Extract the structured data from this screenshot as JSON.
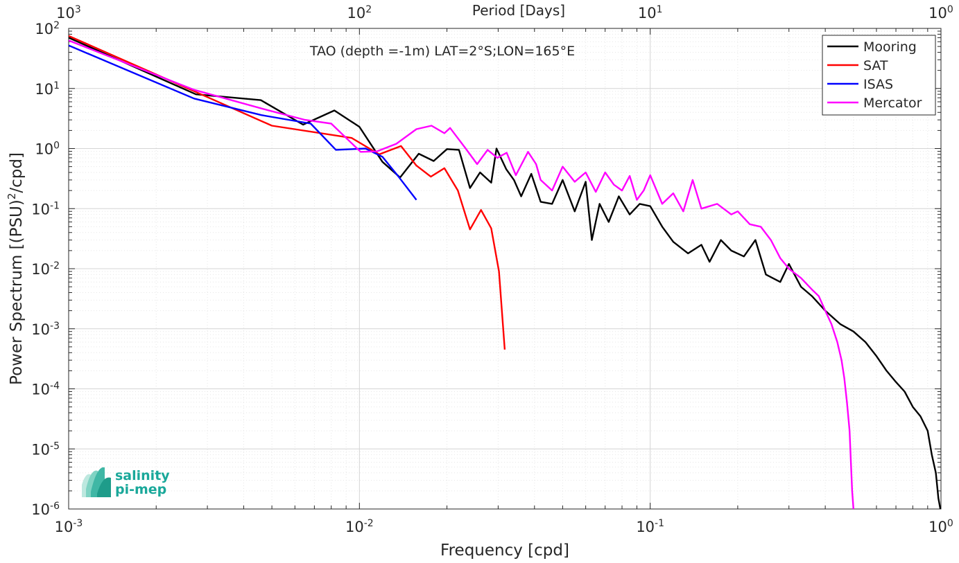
{
  "chart_data": {
    "type": "line",
    "title": "TAO (depth =-1m) LAT=2°S;LON=165°E",
    "xlabel": "Frequency [cpd]",
    "ylabel_main": "Power Spectrum [(PSU)",
    "ylabel_sup": "2",
    "ylabel_tail": "/cpd]",
    "top_axis_label": "Period [Days]",
    "x_scale": "log",
    "y_scale": "log",
    "xlim": [
      0.001,
      1
    ],
    "ylim": [
      1e-06,
      100
    ],
    "grid": "on",
    "legend_position": "top-right",
    "x_ticks": [
      {
        "v": 0.001,
        "base": "10",
        "exp": "-3"
      },
      {
        "v": 0.01,
        "base": "10",
        "exp": "-2"
      },
      {
        "v": 0.1,
        "base": "10",
        "exp": "-1"
      },
      {
        "v": 1,
        "base": "10",
        "exp": "0"
      }
    ],
    "top_ticks": [
      {
        "v": 0.001,
        "base": "10",
        "exp": "3"
      },
      {
        "v": 0.01,
        "base": "10",
        "exp": "2"
      },
      {
        "v": 0.1,
        "base": "10",
        "exp": "1"
      },
      {
        "v": 1,
        "base": "10",
        "exp": "0"
      }
    ],
    "y_ticks": [
      {
        "v": 100,
        "base": "10",
        "exp": "2"
      },
      {
        "v": 10,
        "base": "10",
        "exp": "1"
      },
      {
        "v": 1,
        "base": "10",
        "exp": "0"
      },
      {
        "v": 0.1,
        "base": "10",
        "exp": "-1"
      },
      {
        "v": 0.01,
        "base": "10",
        "exp": "-2"
      },
      {
        "v": 0.001,
        "base": "10",
        "exp": "-3"
      },
      {
        "v": 0.0001,
        "base": "10",
        "exp": "-4"
      },
      {
        "v": 1e-05,
        "base": "10",
        "exp": "-5"
      },
      {
        "v": 1e-06,
        "base": "10",
        "exp": "-6"
      }
    ],
    "series": [
      {
        "name": "Mooring",
        "color": "#000000",
        "points": [
          [
            0.001,
            70
          ],
          [
            0.00274,
            8
          ],
          [
            0.00458,
            6.4
          ],
          [
            0.0064,
            2.5
          ],
          [
            0.0082,
            4.3
          ],
          [
            0.01,
            2.3
          ],
          [
            0.012,
            0.6
          ],
          [
            0.0138,
            0.33
          ],
          [
            0.016,
            0.82
          ],
          [
            0.018,
            0.62
          ],
          [
            0.02,
            0.98
          ],
          [
            0.022,
            0.95
          ],
          [
            0.024,
            0.22
          ],
          [
            0.026,
            0.4
          ],
          [
            0.0284,
            0.27
          ],
          [
            0.0296,
            1.0
          ],
          [
            0.032,
            0.45
          ],
          [
            0.034,
            0.3
          ],
          [
            0.036,
            0.16
          ],
          [
            0.039,
            0.38
          ],
          [
            0.042,
            0.13
          ],
          [
            0.046,
            0.12
          ],
          [
            0.05,
            0.3
          ],
          [
            0.055,
            0.09
          ],
          [
            0.06,
            0.28
          ],
          [
            0.063,
            0.03
          ],
          [
            0.067,
            0.12
          ],
          [
            0.072,
            0.06
          ],
          [
            0.078,
            0.16
          ],
          [
            0.085,
            0.08
          ],
          [
            0.092,
            0.12
          ],
          [
            0.1,
            0.11
          ],
          [
            0.11,
            0.05
          ],
          [
            0.12,
            0.028
          ],
          [
            0.135,
            0.018
          ],
          [
            0.15,
            0.025
          ],
          [
            0.16,
            0.013
          ],
          [
            0.175,
            0.03
          ],
          [
            0.19,
            0.02
          ],
          [
            0.21,
            0.016
          ],
          [
            0.23,
            0.03
          ],
          [
            0.25,
            0.008
          ],
          [
            0.28,
            0.006
          ],
          [
            0.3,
            0.012
          ],
          [
            0.33,
            0.005
          ],
          [
            0.36,
            0.0035
          ],
          [
            0.4,
            0.002
          ],
          [
            0.45,
            0.0012
          ],
          [
            0.5,
            0.0009
          ],
          [
            0.55,
            0.0006
          ],
          [
            0.6,
            0.00035
          ],
          [
            0.65,
            0.0002
          ],
          [
            0.7,
            0.00013
          ],
          [
            0.75,
            9e-05
          ],
          [
            0.8,
            5e-05
          ],
          [
            0.85,
            3.5e-05
          ],
          [
            0.9,
            2e-05
          ],
          [
            0.93,
            8e-06
          ],
          [
            0.96,
            4e-06
          ],
          [
            0.98,
            1.5e-06
          ],
          [
            0.995,
            1e-06
          ]
        ]
      },
      {
        "name": "SAT",
        "color": "#ff0000",
        "points": [
          [
            0.001,
            75
          ],
          [
            0.0027,
            9
          ],
          [
            0.005,
            2.4
          ],
          [
            0.0094,
            1.5
          ],
          [
            0.0117,
            0.8
          ],
          [
            0.0139,
            1.1
          ],
          [
            0.0157,
            0.52
          ],
          [
            0.0176,
            0.34
          ],
          [
            0.0196,
            0.47
          ],
          [
            0.0218,
            0.2
          ],
          [
            0.024,
            0.045
          ],
          [
            0.0262,
            0.095
          ],
          [
            0.0284,
            0.047
          ],
          [
            0.0302,
            0.009
          ],
          [
            0.0316,
            0.00045
          ]
        ]
      },
      {
        "name": "ISAS",
        "color": "#0000ff",
        "points": [
          [
            0.001,
            52
          ],
          [
            0.0027,
            6.8
          ],
          [
            0.0046,
            3.6
          ],
          [
            0.0068,
            2.6
          ],
          [
            0.0083,
            0.95
          ],
          [
            0.0105,
            1.0
          ],
          [
            0.012,
            0.73
          ],
          [
            0.0137,
            0.33
          ],
          [
            0.0157,
            0.14
          ]
        ]
      },
      {
        "name": "Mercator",
        "color": "#ff00ff",
        "points": [
          [
            0.001,
            63
          ],
          [
            0.0027,
            9.5
          ],
          [
            0.0048,
            4.4
          ],
          [
            0.0065,
            3
          ],
          [
            0.008,
            2.6
          ],
          [
            0.0101,
            0.88
          ],
          [
            0.0115,
            0.9
          ],
          [
            0.0134,
            1.2
          ],
          [
            0.0157,
            2.1
          ],
          [
            0.0177,
            2.4
          ],
          [
            0.0196,
            1.8
          ],
          [
            0.0205,
            2.2
          ],
          [
            0.0232,
            1.0
          ],
          [
            0.0254,
            0.55
          ],
          [
            0.0276,
            0.95
          ],
          [
            0.0298,
            0.7
          ],
          [
            0.0321,
            0.85
          ],
          [
            0.0345,
            0.36
          ],
          [
            0.038,
            0.88
          ],
          [
            0.0405,
            0.55
          ],
          [
            0.042,
            0.3
          ],
          [
            0.046,
            0.2
          ],
          [
            0.05,
            0.5
          ],
          [
            0.055,
            0.28
          ],
          [
            0.06,
            0.4
          ],
          [
            0.065,
            0.19
          ],
          [
            0.07,
            0.4
          ],
          [
            0.075,
            0.25
          ],
          [
            0.08,
            0.2
          ],
          [
            0.085,
            0.35
          ],
          [
            0.09,
            0.14
          ],
          [
            0.095,
            0.2
          ],
          [
            0.1,
            0.36
          ],
          [
            0.11,
            0.12
          ],
          [
            0.12,
            0.18
          ],
          [
            0.13,
            0.09
          ],
          [
            0.14,
            0.3
          ],
          [
            0.15,
            0.1
          ],
          [
            0.17,
            0.12
          ],
          [
            0.19,
            0.08
          ],
          [
            0.2,
            0.09
          ],
          [
            0.22,
            0.055
          ],
          [
            0.24,
            0.05
          ],
          [
            0.26,
            0.03
          ],
          [
            0.28,
            0.015
          ],
          [
            0.3,
            0.01
          ],
          [
            0.33,
            0.007
          ],
          [
            0.36,
            0.0045
          ],
          [
            0.38,
            0.0035
          ],
          [
            0.4,
            0.002
          ],
          [
            0.42,
            0.0012
          ],
          [
            0.44,
            0.0006
          ],
          [
            0.455,
            0.0003
          ],
          [
            0.465,
            0.00015
          ],
          [
            0.475,
            6e-05
          ],
          [
            0.485,
            2e-05
          ],
          [
            0.49,
            6e-06
          ],
          [
            0.495,
            2e-06
          ],
          [
            0.5,
            1e-06
          ]
        ]
      }
    ]
  },
  "logo": {
    "line1": "salinity",
    "line2": "pi-mep",
    "color": "#1aa89a"
  }
}
